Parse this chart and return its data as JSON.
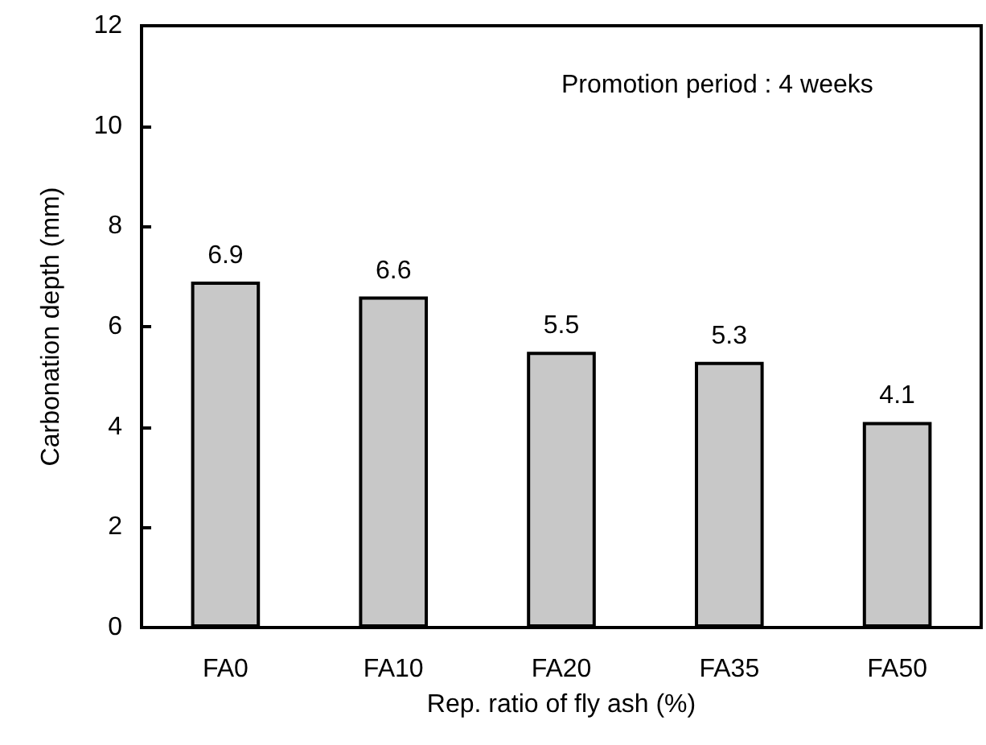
{
  "chart_data": {
    "type": "bar",
    "xlabel": "Rep. ratio of fly ash (%)",
    "ylabel": "Carbonation depth (mm)",
    "annotations": [
      "Promotion period : 4 weeks"
    ],
    "categories": [
      "FA0",
      "FA10",
      "FA20",
      "FA35",
      "FA50"
    ],
    "values": [
      6.9,
      6.6,
      5.5,
      5.3,
      4.1
    ],
    "color": "#c8c8c8",
    "ylim": [
      0,
      12
    ],
    "yticks": [
      0,
      2,
      4,
      6,
      8,
      10,
      12
    ],
    "grid": false,
    "data_labels": true
  }
}
